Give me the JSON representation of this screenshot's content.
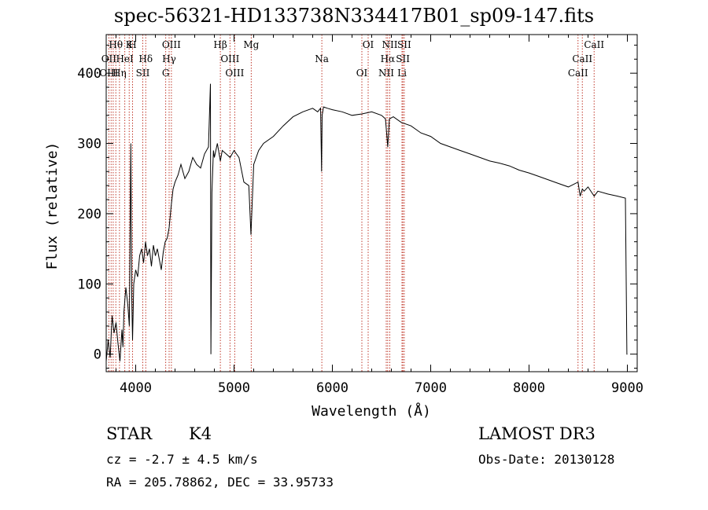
{
  "chart_data": {
    "type": "line",
    "title": "spec-56321-HD133738N334417B01_sp09-147.fits",
    "xlabel": "Wavelength (Å)",
    "ylabel": "Flux (relative)",
    "xlim": [
      3700,
      9100
    ],
    "ylim": [
      -25,
      455
    ],
    "xticks": [
      4000,
      5000,
      6000,
      7000,
      8000,
      9000
    ],
    "yticks": [
      0,
      100,
      200,
      300,
      400
    ],
    "grid": false,
    "series": [
      {
        "x": [
          3700,
          3720,
          3740,
          3760,
          3780,
          3800,
          3820,
          3840,
          3860,
          3870,
          3880,
          3900,
          3920,
          3935,
          3950,
          3960,
          3968,
          3980,
          4000,
          4020,
          4040,
          4060,
          4080,
          4100,
          4120,
          4140,
          4160,
          4180,
          4200,
          4220,
          4240,
          4260,
          4280,
          4300,
          4320,
          4340,
          4360,
          4380,
          4400,
          4430,
          4460,
          4500,
          4540,
          4580,
          4620,
          4660,
          4700,
          4740,
          4760,
          4765,
          4775,
          4790,
          4800,
          4830,
          4861,
          4880,
          4920,
          4960,
          5000,
          5050,
          5100,
          5150,
          5172,
          5183,
          5200,
          5250,
          5300,
          5400,
          5500,
          5600,
          5700,
          5800,
          5850,
          5880,
          5890,
          5896,
          5910,
          5950,
          6000,
          6100,
          6200,
          6300,
          6400,
          6500,
          6540,
          6563,
          6580,
          6620,
          6700,
          6800,
          6900,
          7000,
          7100,
          7200,
          7300,
          7400,
          7500,
          7600,
          7700,
          7800,
          7900,
          8000,
          8100,
          8200,
          8300,
          8400,
          8498,
          8520,
          8542,
          8560,
          8600,
          8662,
          8700,
          8800,
          8900,
          8980,
          8995,
          9000
        ],
        "y": [
          -10,
          20,
          -5,
          55,
          30,
          45,
          15,
          -10,
          35,
          10,
          60,
          95,
          70,
          40,
          300,
          80,
          20,
          100,
          120,
          110,
          140,
          150,
          130,
          160,
          140,
          150,
          125,
          155,
          140,
          150,
          135,
          120,
          145,
          160,
          165,
          180,
          210,
          235,
          245,
          255,
          270,
          250,
          260,
          280,
          270,
          265,
          285,
          295,
          385,
          0,
          230,
          290,
          280,
          300,
          275,
          290,
          285,
          280,
          290,
          280,
          245,
          240,
          170,
          210,
          270,
          290,
          300,
          310,
          325,
          338,
          345,
          350,
          345,
          350,
          260,
          340,
          352,
          350,
          348,
          345,
          340,
          342,
          345,
          340,
          335,
          295,
          335,
          338,
          330,
          325,
          315,
          310,
          300,
          295,
          290,
          285,
          280,
          275,
          272,
          268,
          262,
          258,
          253,
          248,
          243,
          238,
          245,
          225,
          235,
          232,
          238,
          225,
          232,
          228,
          225,
          222,
          0,
          0
        ]
      }
    ],
    "line_labels": [
      {
        "label": "Hθ",
        "x": 3798
      },
      {
        "label": "OII",
        "x": 3727
      },
      {
        "label": "OIII",
        "x": 3727
      },
      {
        "label": "K",
        "x": 3934
      },
      {
        "label": "HeI",
        "x": 3889
      },
      {
        "label": "Hη",
        "x": 3835
      },
      {
        "label": "H",
        "x": 3968
      },
      {
        "label": "Hδ",
        "x": 4102
      },
      {
        "label": "SII",
        "x": 4072
      },
      {
        "label": "OIII",
        "x": 4363
      },
      {
        "label": "Hγ",
        "x": 4340
      },
      {
        "label": "G",
        "x": 4305
      },
      {
        "label": "Hβ",
        "x": 4861
      },
      {
        "label": "OIII",
        "x": 4959
      },
      {
        "label": "OIII",
        "x": 5007
      },
      {
        "label": "Mg",
        "x": 5175
      },
      {
        "label": "Na",
        "x": 5893
      },
      {
        "label": "OI",
        "x": 6300
      },
      {
        "label": "OI",
        "x": 6364
      },
      {
        "label": "Hα",
        "x": 6563
      },
      {
        "label": "NII",
        "x": 6548
      },
      {
        "label": "NII",
        "x": 6584
      },
      {
        "label": "SII",
        "x": 6717
      },
      {
        "label": "Li",
        "x": 6708
      },
      {
        "label": "SII",
        "x": 6731
      },
      {
        "label": "CaII",
        "x": 8542
      },
      {
        "label": "CaII",
        "x": 8498
      },
      {
        "label": "CaII",
        "x": 8662
      }
    ],
    "marker_lines": [
      3727,
      3750,
      3771,
      3798,
      3835,
      3889,
      3934,
      3968,
      4072,
      4102,
      4305,
      4340,
      4363,
      4861,
      4959,
      5007,
      5175,
      5893,
      6300,
      6364,
      6548,
      6563,
      6584,
      6708,
      6717,
      6731,
      8498,
      8542,
      8662
    ]
  },
  "info": {
    "class": "STAR",
    "subclass": "K4",
    "survey": "LAMOST DR3",
    "cz": "cz = -2.7 ± 4.5 km/s",
    "obs_date": "Obs-Date: 20130128",
    "coords": "RA = 205.78862, DEC =  33.95733"
  }
}
